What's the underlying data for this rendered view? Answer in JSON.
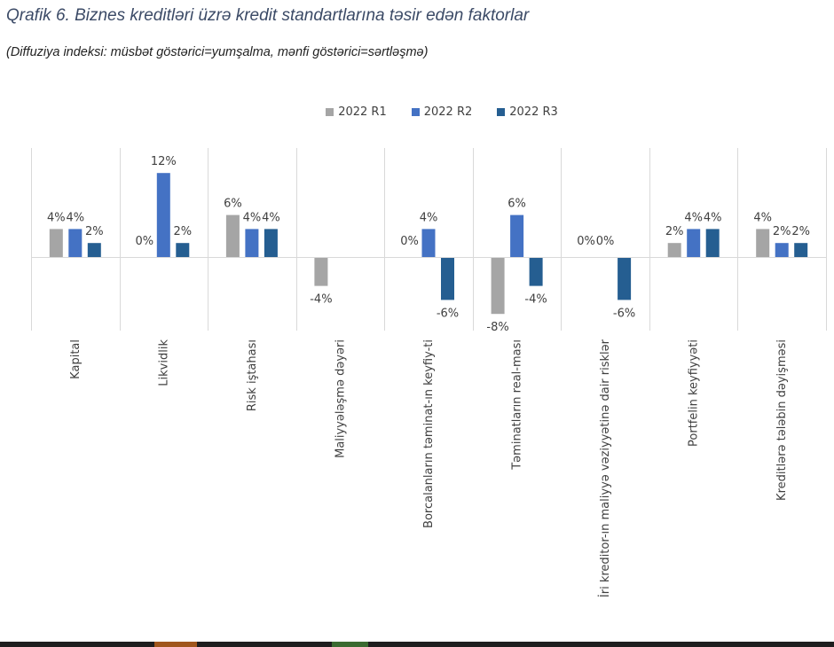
{
  "title": "Qrafik 6. Biznes kreditləri üzrə kredit standartlarına təsir edən faktorlar",
  "subtitle": "(Diffuziya indeksi: müsbət göstərici=yumşalma, mənfi göstərici=sərtləşmə)",
  "chart_data": {
    "type": "bar",
    "title": "Qrafik 6. Biznes kreditləri üzrə kredit standartlarına təsir edən faktorlar",
    "subtitle": "(Diffuziya indeksi: müsbət göstərici=yumşalma, mənfi göstərici=sərtləşmə)",
    "xlabel": "",
    "ylabel": "",
    "ylim": [
      -10,
      15
    ],
    "grid": "vertical category separators",
    "legend_position": "top",
    "value_format": "percent",
    "categories": [
      "Kapital",
      "Likvidlik",
      "Risk iştahası",
      "Maliyyələşmə dəyəri",
      "Borcalanların təminat-ın keyfiy-ti",
      "Təminatların real-ması",
      "İri kreditor-ın maliyyə vəziyyətinə dair risklər",
      "Portfelin keyfiyyəti",
      "Kreditlərə tələbin dəyişməsi"
    ],
    "series": [
      {
        "name": "2022 R1",
        "color": "#a5a5a5",
        "values": [
          4,
          0,
          6,
          -4,
          0,
          -8,
          0,
          2,
          4
        ],
        "labels": [
          "4%",
          "0%",
          "6%",
          "-4%",
          "0%",
          "-8%",
          "0%",
          "2%",
          "4%"
        ]
      },
      {
        "name": "2022 R2",
        "color": "#4472c4",
        "values": [
          4,
          12,
          4,
          null,
          4,
          6,
          0,
          4,
          2
        ],
        "labels": [
          "4%",
          "12%",
          "4%",
          "",
          "4%",
          "6%",
          "0%",
          "4%",
          "2%"
        ]
      },
      {
        "name": "2022 R3",
        "color": "#255e91",
        "values": [
          2,
          2,
          4,
          null,
          -6,
          -4,
          -6,
          4,
          2
        ],
        "labels": [
          "2%",
          "2%",
          "4%",
          "",
          "-6%",
          "-4%",
          "-6%",
          "4%",
          "2%"
        ]
      }
    ]
  },
  "bottom_strip": {
    "base_color": "#1e1e1e",
    "accent_colors": [
      "#a0561c",
      "#3a6a30"
    ]
  }
}
